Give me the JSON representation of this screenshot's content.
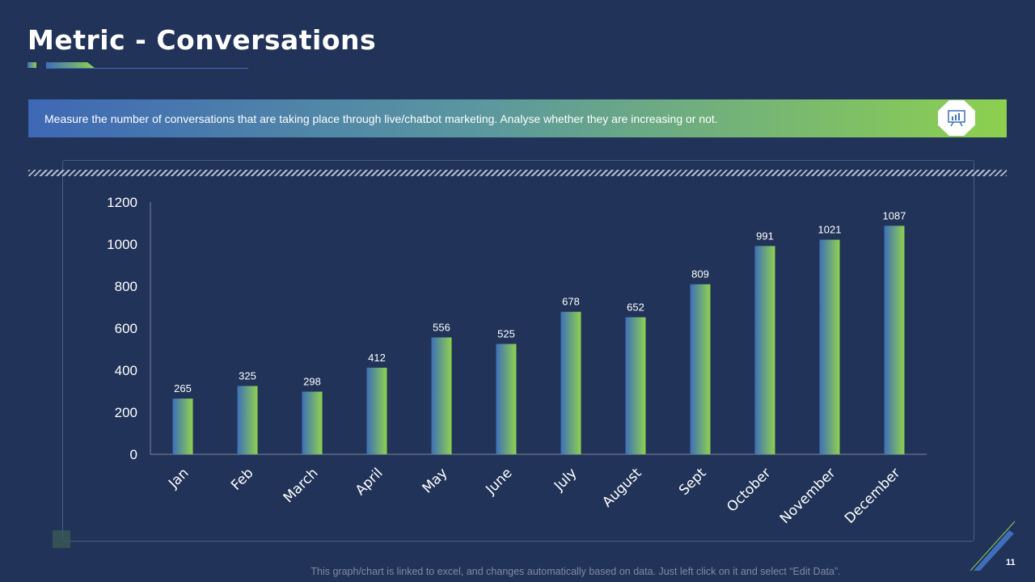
{
  "slide": {
    "title": "Metric - Conversations",
    "banner_text": "Measure the number of conversations that are taking place through live/chatbot marketing. Analyse whether they are increasing or not.",
    "banner_icon": "presentation-chart-icon",
    "footnote": "This graph/chart is linked to excel, and changes automatically based on data. Just left click on it and select “Edit Data”.",
    "page_number": "11"
  },
  "colors": {
    "background": "#213358",
    "bar_gradient_start": "#3e6fb8",
    "bar_gradient_end": "#8fd14f",
    "text": "#ffffff"
  },
  "chart_data": {
    "type": "bar",
    "title": "",
    "xlabel": "",
    "ylabel": "",
    "categories": [
      "Jan",
      "Feb",
      "March",
      "April",
      "May",
      "June",
      "July",
      "August",
      "Sept",
      "October",
      "November",
      "December"
    ],
    "values": [
      265,
      325,
      298,
      412,
      556,
      525,
      678,
      652,
      809,
      991,
      1021,
      1087
    ],
    "ylim": [
      0,
      1200
    ],
    "yticks": [
      0,
      200,
      400,
      600,
      800,
      1000,
      1200
    ],
    "grid": false,
    "legend": "none",
    "data_labels": true
  }
}
